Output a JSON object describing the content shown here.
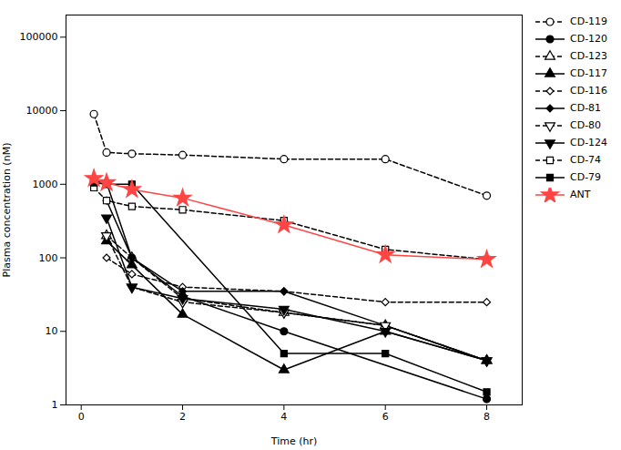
{
  "chart_data": {
    "type": "line",
    "x": [
      0.25,
      0.5,
      1,
      2,
      4,
      6,
      8
    ],
    "series": [
      {
        "name": "CD-119",
        "color": "#000000",
        "line_style": "dashed",
        "marker": "open-circle",
        "values": [
          9000,
          2700,
          2600,
          2500,
          2200,
          2200,
          700
        ]
      },
      {
        "name": "CD-120",
        "color": "#000000",
        "line_style": "solid",
        "marker": "circle",
        "values": [
          1100,
          1050,
          100,
          30,
          10,
          null,
          1.2
        ]
      },
      {
        "name": "CD-123",
        "color": "#000000",
        "line_style": "dashed",
        "marker": "open-triangle",
        "values": [
          null,
          200,
          100,
          28,
          18,
          12,
          4
        ]
      },
      {
        "name": "CD-117",
        "color": "#000000",
        "line_style": "solid",
        "marker": "triangle",
        "values": [
          null,
          170,
          80,
          17,
          3,
          10,
          4
        ]
      },
      {
        "name": "CD-116",
        "color": "#000000",
        "line_style": "dashed",
        "marker": "open-diamond",
        "values": [
          null,
          100,
          60,
          40,
          35,
          25,
          25
        ]
      },
      {
        "name": "CD-81",
        "color": "#000000",
        "line_style": "solid",
        "marker": "diamond",
        "values": [
          null,
          600,
          100,
          35,
          35,
          12,
          4
        ]
      },
      {
        "name": "CD-80",
        "color": "#000000",
        "line_style": "dashed",
        "marker": "open-triangle-down",
        "values": [
          null,
          200,
          40,
          25,
          18,
          12,
          4
        ]
      },
      {
        "name": "CD-124",
        "color": "#000000",
        "line_style": "solid",
        "marker": "triangle-down",
        "values": [
          null,
          350,
          40,
          28,
          20,
          10,
          4
        ]
      },
      {
        "name": "CD-74",
        "color": "#000000",
        "line_style": "dashed",
        "marker": "open-square",
        "values": [
          900,
          600,
          500,
          450,
          320,
          130,
          95
        ]
      },
      {
        "name": "CD-79",
        "color": "#000000",
        "line_style": "solid",
        "marker": "square",
        "values": [
          1050,
          1000,
          1000,
          null,
          5,
          5,
          1.5
        ]
      },
      {
        "name": "ANT",
        "color": "#ff4444",
        "line_style": "solid",
        "marker": "star",
        "values": [
          1200,
          1050,
          850,
          650,
          280,
          110,
          95
        ]
      }
    ],
    "xlabel": "Time (hr)",
    "ylabel": "Plasma concentration (nM)",
    "xlim": [
      -0.3,
      8.7
    ],
    "ylim": [
      1,
      200000
    ],
    "xticks": [
      0,
      2,
      4,
      6,
      8
    ],
    "yticks": [
      1,
      10,
      100,
      1000,
      10000,
      100000
    ],
    "log": "y",
    "legend": "right"
  }
}
